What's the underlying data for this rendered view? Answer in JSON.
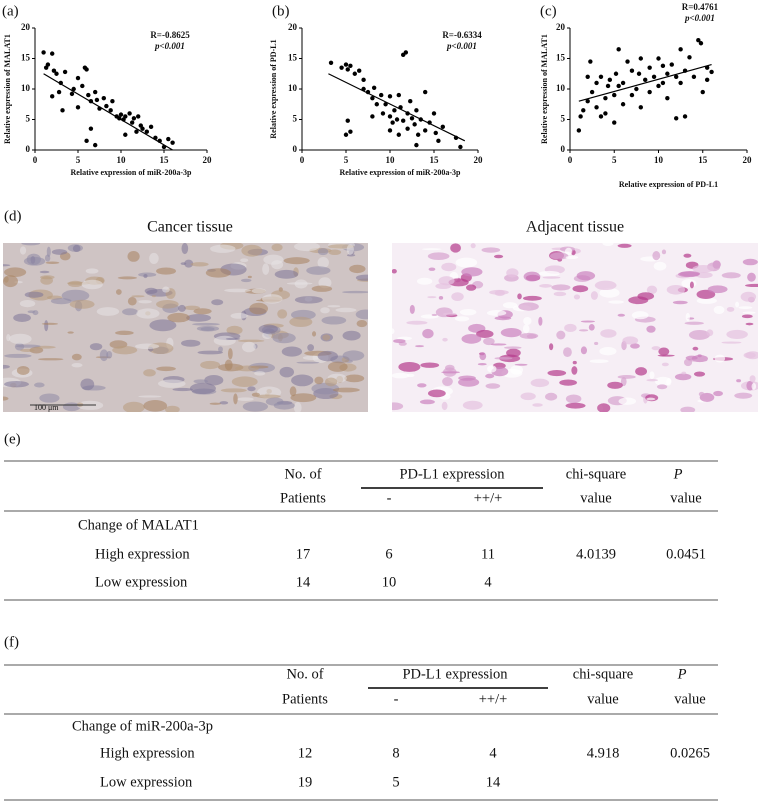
{
  "chart_data": [
    {
      "type": "scatter",
      "panel": "(a)",
      "annotation_r": "R=-0.8625",
      "annotation_p": "p<0.001",
      "xlabel": "Relative  expression of miR-200a-3p",
      "ylabel": "Relative expression of MALAT1",
      "xlim": [
        0,
        20
      ],
      "ylim": [
        0,
        20
      ],
      "xticks": [
        0,
        5,
        10,
        15,
        20
      ],
      "yticks": [
        0,
        5,
        10,
        15,
        20
      ],
      "color": "#000000",
      "x": [
        1,
        1.5,
        2,
        2.2,
        1.3,
        2.5,
        3,
        3.5,
        2.8,
        2,
        3.2,
        4.5,
        4.3,
        5,
        5.5,
        5.8,
        6,
        6.2,
        5,
        6.5,
        7,
        7.5,
        7.2,
        8,
        8.3,
        8.8,
        9,
        9.5,
        9.8,
        10,
        10.3,
        10.5,
        11,
        11.3,
        11.5,
        11.8,
        12,
        12.3,
        12.5,
        13,
        13.5,
        14,
        14.5,
        15,
        15.5,
        16,
        6,
        6.5,
        7,
        10.5
      ],
      "values": [
        16,
        14,
        15.8,
        13,
        13.5,
        12.5,
        11,
        12.8,
        9.5,
        8.8,
        6.5,
        10,
        9.2,
        11.8,
        10.5,
        13.5,
        13.2,
        9,
        7,
        8,
        9.5,
        6.8,
        8.2,
        8.5,
        7.2,
        6.5,
        8,
        5.5,
        5.2,
        5.8,
        5,
        5.5,
        6,
        4.5,
        5.2,
        3,
        5.5,
        4,
        3.5,
        3,
        3.8,
        2,
        1.5,
        0.5,
        1.8,
        1.2,
        1.5,
        3.5,
        0.8,
        2.5
      ],
      "trend_line": {
        "x": [
          1,
          16
        ],
        "y": [
          12.5,
          0
        ]
      }
    },
    {
      "type": "scatter",
      "panel": "(b)",
      "annotation_r": "R=-0.6334",
      "annotation_p": "p<0.001",
      "xlabel": "Relative  expression of miR-200a-3p",
      "ylabel": "Relative expression of PD-L1",
      "xlim": [
        0,
        20
      ],
      "ylim": [
        0,
        20
      ],
      "xticks": [
        0,
        5,
        10,
        15,
        20
      ],
      "yticks": [
        0,
        5,
        10,
        15,
        20
      ],
      "color": "#000000",
      "x": [
        3.3,
        4.5,
        5,
        5.2,
        5.5,
        6,
        5,
        5.2,
        5.5,
        6.5,
        7,
        7.5,
        7,
        8,
        8.5,
        8.2,
        9,
        9.2,
        9.5,
        10,
        10,
        10.3,
        10.5,
        10.8,
        11,
        11,
        11.2,
        11.5,
        11.5,
        11.8,
        12,
        12,
        12.3,
        12.5,
        12.8,
        13,
        13,
        13.2,
        13.5,
        14,
        14,
        14.5,
        15,
        15.2,
        15.5,
        16,
        17.5,
        18,
        10,
        8
      ],
      "values": [
        14.3,
        13.5,
        14,
        13.2,
        13.8,
        12.5,
        2.5,
        4.8,
        3,
        13,
        10,
        9.5,
        11.5,
        8.5,
        7.5,
        10.2,
        9,
        6,
        7.5,
        5.5,
        8.8,
        4.5,
        6.5,
        5,
        2.5,
        9,
        7,
        4.8,
        15.6,
        16,
        6,
        3.5,
        8,
        5.2,
        4.2,
        6.5,
        0.8,
        2.5,
        5,
        9.5,
        3.2,
        4.5,
        6,
        2.8,
        1.5,
        3.8,
        2,
        0.5,
        3.2,
        5.5
      ],
      "trend_line": {
        "x": [
          3,
          18.5
        ],
        "y": [
          12.5,
          1.5
        ]
      }
    },
    {
      "type": "scatter",
      "panel": "(c)",
      "annotation_r": "R=0.4761",
      "annotation_p": "p<0.001",
      "xlabel": "Relative  expression of PD-L1",
      "ylabel": "Relative expression of MALAT1",
      "xlim": [
        0,
        20
      ],
      "ylim": [
        0,
        20
      ],
      "xticks": [
        0,
        5,
        10,
        15,
        20
      ],
      "yticks": [
        0,
        5,
        10,
        15,
        20
      ],
      "color": "#000000",
      "x": [
        1,
        1.2,
        1.5,
        2,
        2,
        2.3,
        2.5,
        3,
        3,
        3.5,
        3.5,
        4,
        4,
        4.3,
        4.5,
        5,
        5,
        5.2,
        5.5,
        5.5,
        6,
        6,
        6.5,
        7,
        7,
        7.5,
        7.8,
        8,
        8,
        8.5,
        9,
        9,
        9.5,
        10,
        10,
        10.5,
        10.5,
        11,
        11,
        11.5,
        12,
        12,
        12.5,
        12.5,
        13,
        13,
        13.5,
        14,
        14.5,
        14.8,
        15,
        15.5,
        16,
        15.5
      ],
      "values": [
        3.2,
        5.5,
        6.5,
        8,
        12,
        14.5,
        9.5,
        7,
        11,
        5.5,
        12,
        8.5,
        6,
        10.5,
        11.5,
        4.5,
        9,
        12.5,
        16.5,
        10.5,
        11,
        7.5,
        14.5,
        13,
        9,
        10,
        12.5,
        15,
        7,
        11.5,
        9.5,
        13.5,
        12,
        15,
        10.5,
        11,
        13.8,
        12.5,
        8.5,
        14,
        12,
        5.2,
        16.5,
        11,
        5.5,
        13,
        15.2,
        12,
        18,
        17.5,
        9.5,
        11.5,
        12.8,
        13.5
      ],
      "trend_line": {
        "x": [
          1,
          16
        ],
        "y": [
          8,
          14
        ]
      }
    }
  ],
  "figure_d": {
    "label": "(d)",
    "left_title": "Cancer tissue",
    "right_title": "Adjacent tissue",
    "scale_bar": "100 μm"
  },
  "tables": [
    {
      "label": "(e)",
      "header_row1": [
        "No. of",
        "PD-L1 expression",
        "chi-square",
        "P"
      ],
      "header_row2": [
        "Patients",
        "-",
        "++/+",
        "value",
        "value"
      ],
      "group": "Change of MALAT1",
      "rows": [
        [
          "High expression",
          17,
          6,
          11,
          4.0139,
          0.0451
        ],
        [
          "Low expression",
          14,
          10,
          4
        ]
      ]
    },
    {
      "label": "(f)",
      "header_row1": [
        "No. of",
        "PD-L1 expression",
        "chi-square",
        "P"
      ],
      "header_row2": [
        "Patients",
        "-",
        "++/+",
        "value",
        "value"
      ],
      "group": "Change of miR-200a-3p",
      "rows": [
        [
          "High expression",
          12,
          8,
          4,
          4.918,
          0.0265
        ],
        [
          "Low expression",
          19,
          5,
          14
        ]
      ]
    }
  ]
}
